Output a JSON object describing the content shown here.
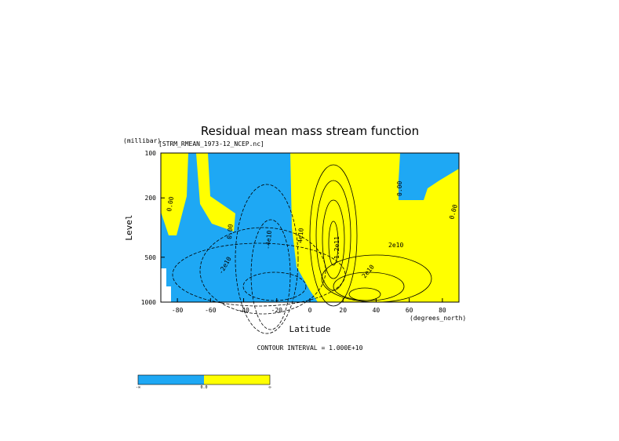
{
  "chart_data": {
    "type": "contour",
    "title": "Residual mean mass stream function",
    "subtitle": "[STRM_RMEAN_1973-12_NCEP.nc]",
    "xlabel": "Latitude",
    "xunits": "(degrees_north)",
    "ylabel": "Level",
    "yunits": "(millibar)",
    "xlim": [
      -90,
      90
    ],
    "xticks": [
      -80,
      -60,
      -40,
      -20,
      0,
      20,
      40,
      60,
      80
    ],
    "ylim": [
      100,
      1000
    ],
    "yticks": [
      100,
      200,
      500,
      1000
    ],
    "ylog": true,
    "yreversed": true,
    "footer": "CONTOUR INTERVAL = 1.000E+10",
    "negative_color": "#1ea8f4",
    "positive_color": "#ffff00",
    "colorbar_labels": [
      "-∞",
      "0.0",
      "∞"
    ],
    "contour_labels": [
      "0.00",
      "0.00",
      "0.00",
      "0.00",
      "4e10",
      "2e10",
      "-4e10",
      "-2e10",
      "1.2e11",
      "2e10"
    ]
  }
}
